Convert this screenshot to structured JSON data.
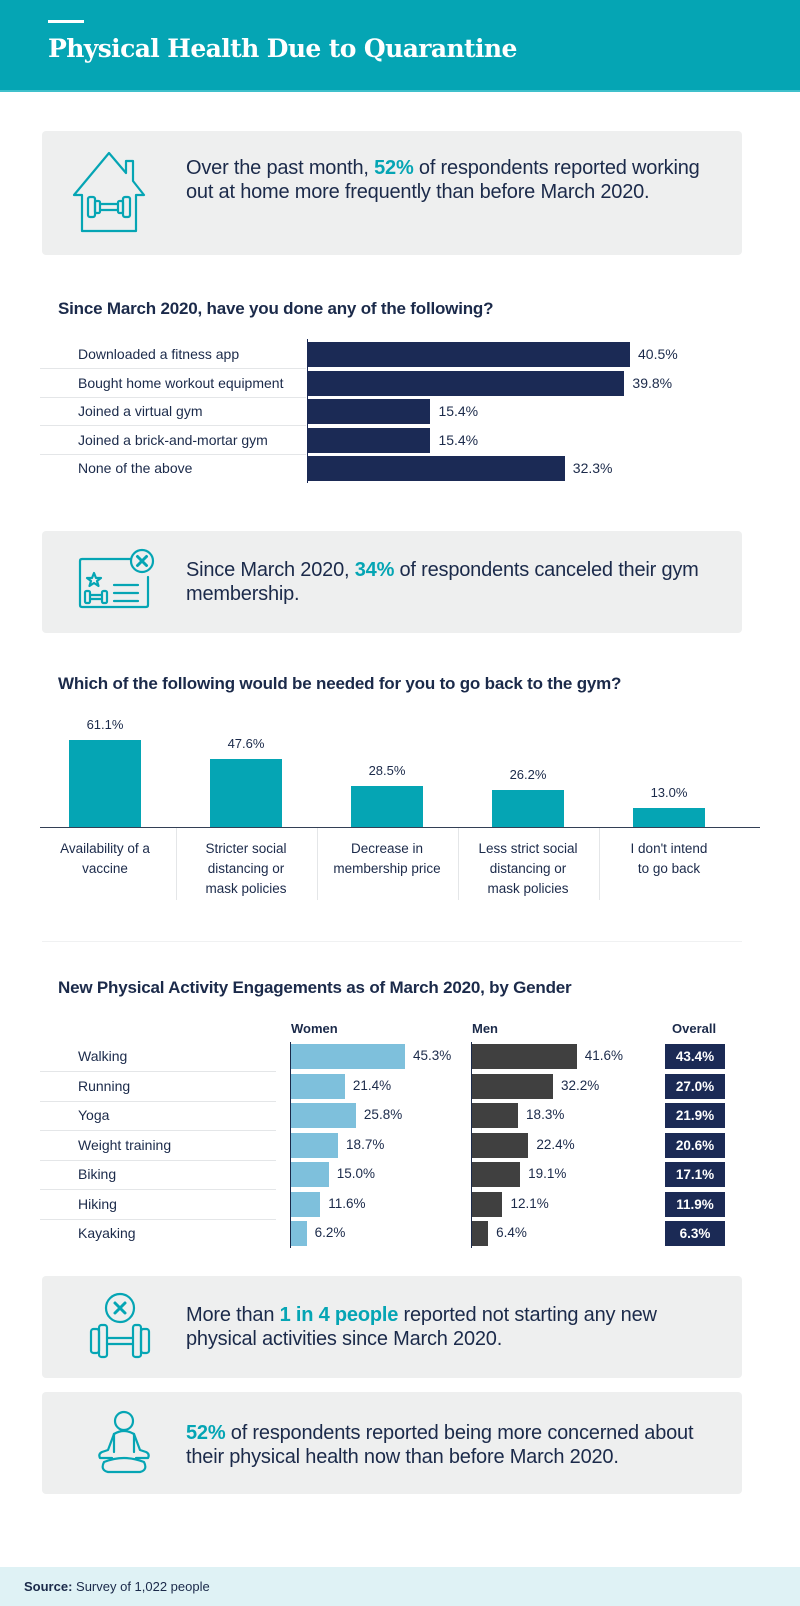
{
  "header": {
    "title": "Physical Health Due to Quarantine"
  },
  "colors": {
    "teal": "#05a5b4",
    "navy": "#1b2a55",
    "women": "#7ec0dc",
    "men": "#404040",
    "callout_bg": "#eeefef",
    "footer_bg": "#dff2f5"
  },
  "callouts": [
    {
      "icon": "house-dumbbell-icon",
      "pre": "Over the past month, ",
      "highlight": "52%",
      "post": " of respondents reported working out at home more frequently than before March 2020."
    },
    {
      "icon": "membership-card-cancel-icon",
      "pre": "Since March 2020, ",
      "highlight": "34%",
      "post": " of respondents canceled their gym membership."
    },
    {
      "icon": "dumbbell-cancel-icon",
      "pre": "More than ",
      "highlight": "1 in 4 people",
      "post": " reported not starting any new physical activities since March 2020."
    },
    {
      "icon": "meditation-person-icon",
      "pre": "",
      "highlight": "52%",
      "post": " of respondents reported being more concerned about their physical health now than before March 2020."
    }
  ],
  "chart_data": [
    {
      "type": "bar",
      "orientation": "horizontal",
      "title": "Since March 2020, have you done any of the following?",
      "categories": [
        "Downloaded a fitness app",
        "Bought home workout equipment",
        "Joined a virtual gym",
        "Joined a brick-and-mortar gym",
        "None of the above"
      ],
      "values": [
        40.5,
        39.8,
        15.4,
        15.4,
        32.3
      ],
      "labels": [
        "40.5%",
        "39.8%",
        "15.4%",
        "15.4%",
        "32.3%"
      ],
      "unit": "%",
      "xlim": [
        0,
        40.5
      ],
      "grid": false,
      "legend": "none"
    },
    {
      "type": "bar",
      "orientation": "vertical",
      "title": "Which of the following would be needed for you to go back to the gym?",
      "categories": [
        [
          "Availability of a",
          "vaccine"
        ],
        [
          "Stricter social",
          "distancing or",
          "mask policies"
        ],
        [
          "Decrease in",
          "membership price"
        ],
        [
          "Less strict social",
          "distancing or",
          "mask policies"
        ],
        [
          "I don't intend",
          "to go back"
        ]
      ],
      "values": [
        61.1,
        47.6,
        28.5,
        26.2,
        13.0
      ],
      "labels": [
        "61.1%",
        "47.6%",
        "28.5%",
        "26.2%",
        "13.0%"
      ],
      "unit": "%",
      "ylim": [
        0,
        61.1
      ],
      "grid": false,
      "legend": "none"
    },
    {
      "type": "bar",
      "orientation": "horizontal",
      "title": "New Physical Activity Engagements as of March 2020, by Gender",
      "categories": [
        "Walking",
        "Running",
        "Yoga",
        "Weight training",
        "Biking",
        "Hiking",
        "Kayaking"
      ],
      "series": [
        {
          "name": "Women",
          "values": [
            45.3,
            21.4,
            25.8,
            18.7,
            15.0,
            11.6,
            6.2
          ],
          "labels": [
            "45.3%",
            "21.4%",
            "25.8%",
            "18.7%",
            "15.0%",
            "11.6%",
            "6.2%"
          ]
        },
        {
          "name": "Men",
          "values": [
            41.6,
            32.2,
            18.3,
            22.4,
            19.1,
            12.1,
            6.4
          ],
          "labels": [
            "41.6%",
            "32.2%",
            "18.3%",
            "22.4%",
            "19.1%",
            "12.1%",
            "6.4%"
          ]
        }
      ],
      "overall": {
        "name": "Overall",
        "values": [
          43.4,
          27.0,
          21.9,
          20.6,
          17.1,
          11.9,
          6.3
        ],
        "labels": [
          "43.4%",
          "27.0%",
          "21.9%",
          "20.6%",
          "17.1%",
          "11.9%",
          "6.3%"
        ]
      },
      "unit": "%",
      "xlim": [
        0,
        45.3
      ],
      "grid": false,
      "legend": "column-headers-top"
    }
  ],
  "footer": {
    "source_label": "Source:",
    "source_text": " Survey of 1,022 people"
  }
}
